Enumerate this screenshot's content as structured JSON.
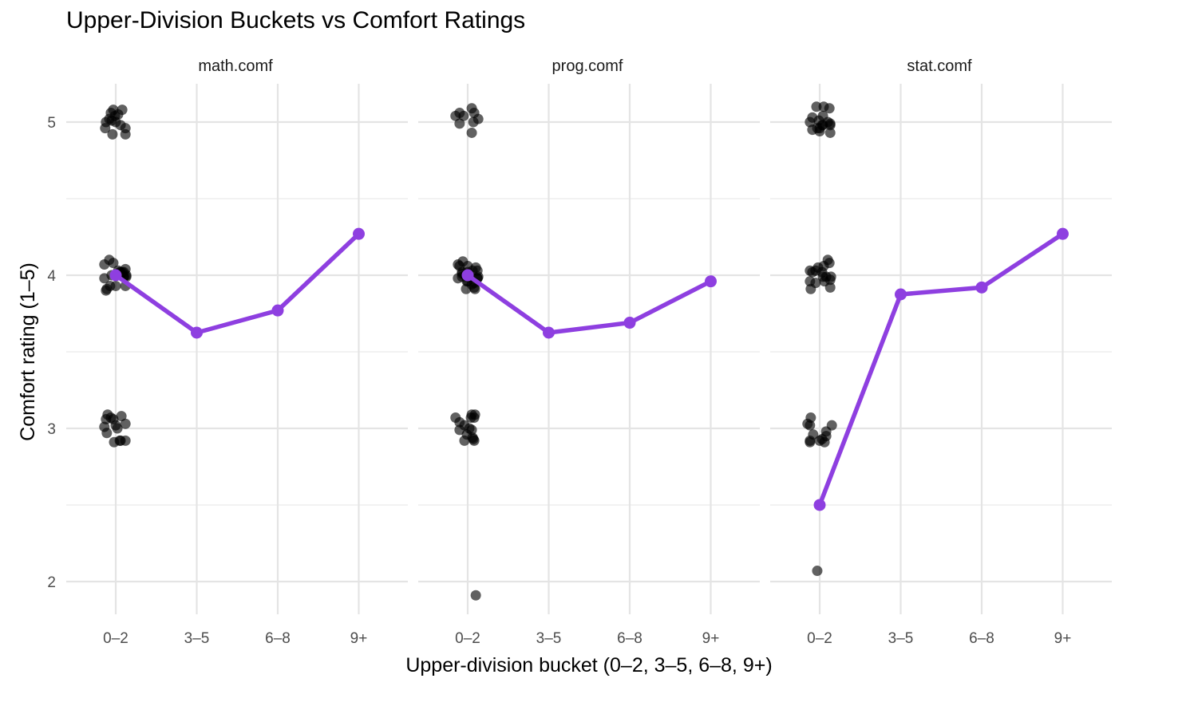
{
  "chart_data": {
    "type": "scatter",
    "title": "Upper-Division Buckets vs Comfort Ratings",
    "xlabel": "Upper-division bucket (0–2, 3–5, 6–8, 9+)",
    "ylabel": "Comfort rating (1–5)",
    "categories": [
      "0–2",
      "3–5",
      "6–8",
      "9+"
    ],
    "ylim": [
      1.8,
      5.25
    ],
    "y_ticks": [
      2,
      3,
      4,
      5
    ],
    "grid": true,
    "mean_color": "#8e3fe0",
    "point_color": "#000000",
    "facets": [
      {
        "name": "math.comf",
        "mean": [
          4.0,
          3.625,
          3.77,
          4.27
        ],
        "points": [
          [
            -0.05,
            4.0
          ],
          [
            0.1,
            4.02
          ],
          [
            0.1,
            3.99
          ],
          [
            -0.13,
            4.96
          ],
          [
            -0.1,
            3.09
          ],
          [
            -0.12,
            3.06
          ],
          [
            -0.14,
            3.01
          ],
          [
            0.06,
            2.92
          ],
          [
            0.1,
            3.99
          ],
          [
            0.13,
            4.0
          ],
          [
            0.12,
            3.93
          ],
          [
            0.08,
            5.08
          ],
          [
            0.12,
            4.92
          ],
          [
            -0.12,
            3.9
          ],
          [
            -0.11,
            3.91
          ],
          [
            -0.08,
            4.1
          ],
          [
            0.03,
            4.03
          ],
          [
            0.08,
            4.02
          ],
          [
            0.06,
            4.02
          ],
          [
            -0.06,
            3.07
          ],
          [
            -0.03,
            3.06
          ],
          [
            0.0,
            3.02
          ],
          [
            0.12,
            3.03
          ],
          [
            -0.02,
            2.91
          ],
          [
            -0.12,
            5.0
          ],
          [
            -0.08,
            5.02
          ],
          [
            -0.06,
            5.06
          ],
          [
            -0.03,
            5.08
          ],
          [
            -0.01,
            5.04
          ],
          [
            0.0,
            5.0
          ],
          [
            0.03,
            5.05
          ],
          [
            0.06,
            4.98
          ],
          [
            0.12,
            4.96
          ],
          [
            -0.04,
            4.92
          ],
          [
            -0.05,
            5.01
          ],
          [
            -0.14,
            4.07
          ],
          [
            -0.14,
            3.98
          ],
          [
            -0.07,
            3.93
          ],
          [
            -0.03,
            4.08
          ],
          [
            0.0,
            3.93
          ],
          [
            0.05,
            4.02
          ],
          [
            0.12,
            4.04
          ],
          [
            0.13,
            3.99
          ],
          [
            -0.11,
            2.97
          ],
          [
            0.02,
            3.0
          ],
          [
            0.07,
            3.08
          ],
          [
            0.05,
            2.92
          ],
          [
            0.12,
            2.92
          ]
        ]
      },
      {
        "name": "prog.comf",
        "mean": [
          4.0,
          3.625,
          3.69,
          3.96
        ],
        "points": [
          [
            -0.07,
            4.01
          ],
          [
            -0.03,
            4.0
          ],
          [
            -0.12,
            4.07
          ],
          [
            -0.07,
            3.99
          ],
          [
            0.0,
            4.06
          ],
          [
            0.08,
            3.95
          ],
          [
            -0.02,
            3.91
          ],
          [
            0.02,
            3.0
          ],
          [
            -0.04,
            2.92
          ],
          [
            0.08,
            2.92
          ],
          [
            0.07,
            5.0
          ],
          [
            -0.12,
            3.98
          ],
          [
            -0.1,
            4.06
          ],
          [
            0.0,
            4.02
          ],
          [
            0.06,
            4.03
          ],
          [
            0.12,
            4.03
          ],
          [
            0.13,
            3.99
          ],
          [
            0.12,
            3.98
          ],
          [
            0.05,
            3.09
          ],
          [
            0.04,
            3.07
          ],
          [
            0.05,
            2.99
          ],
          [
            0.06,
            2.94
          ],
          [
            0.07,
            2.93
          ],
          [
            -0.15,
            5.04
          ],
          [
            -0.1,
            5.06
          ],
          [
            -0.1,
            4.99
          ],
          [
            -0.05,
            5.04
          ],
          [
            0.05,
            5.09
          ],
          [
            0.08,
            5.06
          ],
          [
            0.13,
            5.02
          ],
          [
            0.05,
            4.93
          ],
          [
            -0.06,
            4.09
          ],
          [
            -0.07,
            4.02
          ],
          [
            -0.01,
            3.96
          ],
          [
            0.0,
            3.96
          ],
          [
            0.05,
            3.94
          ],
          [
            0.08,
            3.92
          ],
          [
            0.1,
            4.05
          ],
          [
            0.12,
            3.98
          ],
          [
            0.09,
            3.91
          ],
          [
            -0.15,
            3.07
          ],
          [
            -0.1,
            3.04
          ],
          [
            -0.1,
            2.99
          ],
          [
            -0.04,
            3.02
          ],
          [
            -0.01,
            2.96
          ],
          [
            0.08,
            3.07
          ],
          [
            0.09,
            3.09
          ],
          [
            0.1,
            1.91
          ]
        ]
      },
      {
        "name": "stat.comf",
        "mean": [
          2.5,
          3.875,
          3.92,
          4.27
        ],
        "points": [
          [
            -0.03,
            2.07
          ],
          [
            0.0,
            2.92
          ],
          [
            -0.09,
            5.03
          ],
          [
            0.04,
            4.98
          ],
          [
            -0.05,
            4.03
          ],
          [
            0.04,
            3.99
          ],
          [
            0.13,
            3.92
          ],
          [
            -0.15,
            3.03
          ],
          [
            0.08,
            2.98
          ],
          [
            0.08,
            2.95
          ],
          [
            -0.12,
            5.0
          ],
          [
            -0.09,
            4.95
          ],
          [
            0.0,
            4.94
          ],
          [
            0.13,
            4.99
          ],
          [
            -0.12,
            3.96
          ],
          [
            -0.11,
            3.91
          ],
          [
            0.08,
            3.99
          ],
          [
            -0.12,
            3.02
          ],
          [
            -0.12,
            2.92
          ],
          [
            0.03,
            2.93
          ],
          [
            0.06,
            2.91
          ],
          [
            0.15,
            3.02
          ],
          [
            -0.03,
            4.96
          ],
          [
            0.0,
            4.96
          ],
          [
            0.03,
            4.98
          ],
          [
            -0.01,
            5.01
          ],
          [
            0.04,
            5.04
          ],
          [
            0.1,
            5.0
          ],
          [
            0.12,
            5.09
          ],
          [
            0.13,
            4.93
          ],
          [
            0.13,
            4.98
          ],
          [
            0.05,
            5.1
          ],
          [
            -0.04,
            5.1
          ],
          [
            -0.12,
            4.03
          ],
          [
            -0.09,
            4.02
          ],
          [
            -0.05,
            3.95
          ],
          [
            -0.02,
            4.05
          ],
          [
            0.03,
            4.02
          ],
          [
            0.05,
            4.06
          ],
          [
            0.1,
            4.1
          ],
          [
            0.12,
            4.08
          ],
          [
            0.13,
            3.97
          ],
          [
            0.14,
            3.99
          ],
          [
            0.06,
            3.96
          ],
          [
            -0.11,
            3.07
          ],
          [
            -0.08,
            2.96
          ],
          [
            -0.12,
            2.91
          ]
        ]
      }
    ]
  }
}
